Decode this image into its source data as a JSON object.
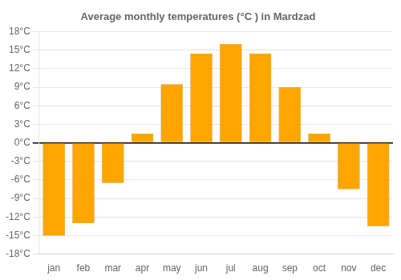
{
  "chart_data": {
    "type": "bar",
    "title": "Average monthly temperatures (°C ) in Mardzad",
    "categories": [
      "jan",
      "feb",
      "mar",
      "apr",
      "may",
      "jun",
      "jul",
      "aug",
      "sep",
      "oct",
      "nov",
      "dec"
    ],
    "values": [
      -15,
      -13,
      -6.5,
      1.5,
      9.5,
      14.5,
      16,
      14.5,
      9,
      1.5,
      -7.5,
      -13.5
    ],
    "color": "#FFA500",
    "ylim": [
      -18,
      18
    ],
    "yticks": [
      {
        "value": -18,
        "label": "-18°C"
      },
      {
        "value": -15,
        "label": "-15°C"
      },
      {
        "value": -12,
        "label": "-12°C"
      },
      {
        "value": -9,
        "label": "-9°C"
      },
      {
        "value": -6,
        "label": "-6°C"
      },
      {
        "value": -3,
        "label": "-3°C"
      },
      {
        "value": 0,
        "label": "0°C"
      },
      {
        "value": 3,
        "label": "3°C"
      },
      {
        "value": 6,
        "label": "6°C"
      },
      {
        "value": 9,
        "label": "9°C"
      },
      {
        "value": 12,
        "label": "12°C"
      },
      {
        "value": 15,
        "label": "15°C"
      },
      {
        "value": 18,
        "label": "18°C"
      }
    ],
    "grid": true
  }
}
